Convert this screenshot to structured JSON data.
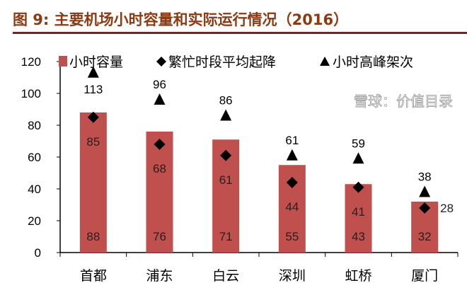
{
  "title": "图 9:  主要机场小时容量和实际运行情况（2016）",
  "watermark": "雪球：价值目录",
  "chart_data": {
    "type": "bar",
    "title": "主要机场小时容量和实际运行情况（2016）",
    "categories": [
      "首都",
      "浦东",
      "白云",
      "深圳",
      "虹桥",
      "厦门"
    ],
    "series": [
      {
        "name": "小时容量",
        "kind": "bar",
        "color": "#c0504d",
        "values": [
          88,
          76,
          71,
          55,
          43,
          32
        ]
      },
      {
        "name": "繁忙时段平均起降",
        "kind": "diamond",
        "color": "#000000",
        "values": [
          85,
          68,
          61,
          44,
          41,
          28
        ]
      },
      {
        "name": "小时高峰架次",
        "kind": "triangle",
        "color": "#000000",
        "values": [
          113,
          96,
          86,
          61,
          59,
          38
        ]
      }
    ],
    "yticks": [
      0,
      20,
      40,
      60,
      80,
      100,
      120
    ],
    "ylim": [
      0,
      120
    ],
    "legend": "top",
    "grid": false
  }
}
